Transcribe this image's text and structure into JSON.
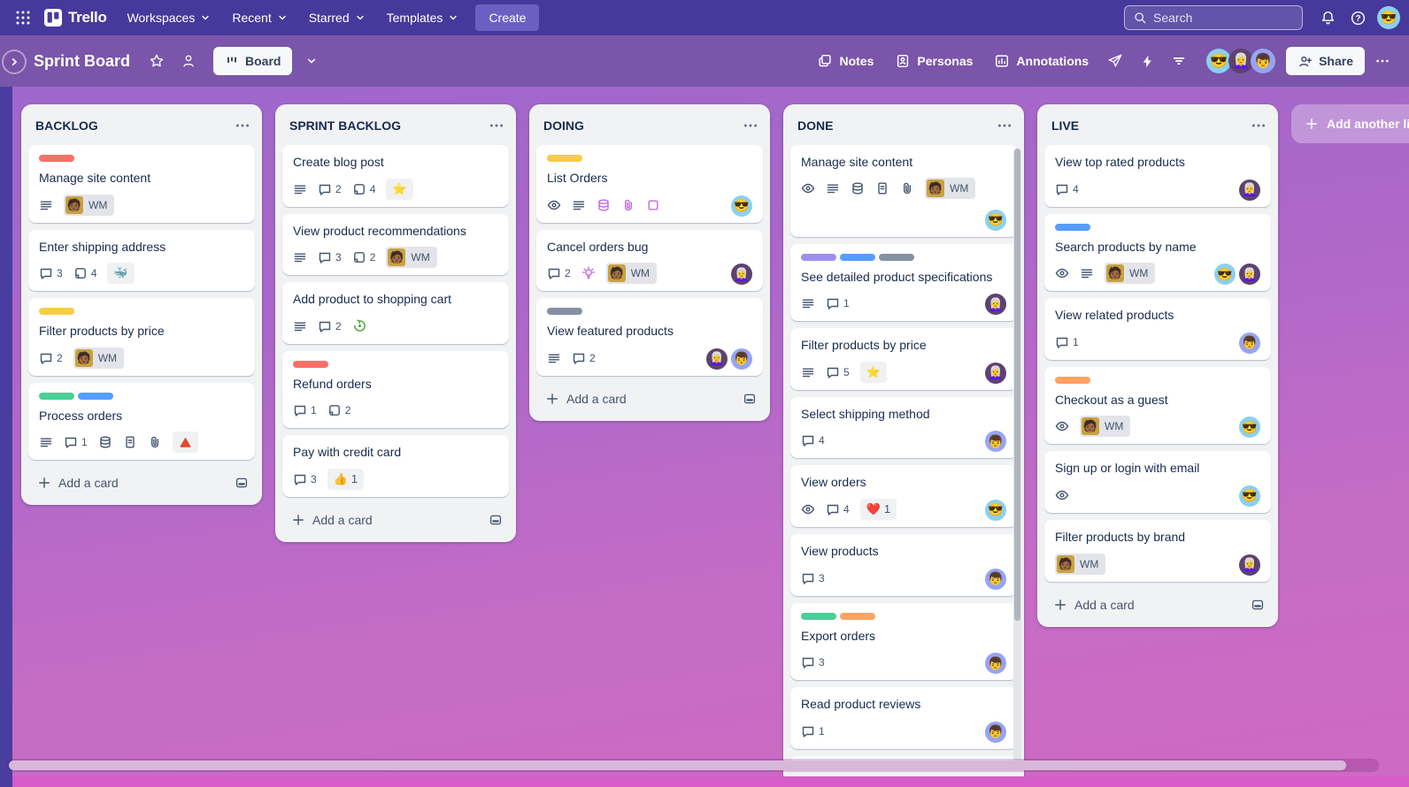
{
  "nav": {
    "brand": "Trello",
    "menus": [
      "Workspaces",
      "Recent",
      "Starred",
      "Templates"
    ],
    "create_label": "Create",
    "search_placeholder": "Search"
  },
  "header": {
    "title": "Sprint Board",
    "view_label": "Board",
    "tools": [
      "Notes",
      "Personas",
      "Annotations"
    ],
    "share_label": "Share"
  },
  "board": {
    "add_list_label": "Add another list",
    "add_card_label": "Add a card",
    "member_label": "WM",
    "member_photo_emoji": "🧑🏾",
    "label_colors": {
      "red": "#f87168",
      "yellow": "#f5cd47",
      "green": "#4bce97",
      "blue": "#579dff",
      "purple": "#9f8fef",
      "gray": "#8590a2",
      "orange": "#fea362"
    },
    "accent_colors": {
      "purple_icon": "#c26bd9",
      "sticker_green": "#5aac44",
      "sticker_red": "#e5472f"
    },
    "avatars": {
      "sun": {
        "name": "sunglasses-man",
        "emoji": "😎",
        "bg": "#8bd0f1"
      },
      "woman": {
        "name": "white-hair-woman",
        "emoji": "👩‍🦳",
        "bg": "#5d4370"
      },
      "boy": {
        "name": "boy",
        "emoji": "👦",
        "bg": "#97a4f4"
      }
    },
    "header_avatars": [
      "sun",
      "woman",
      "boy"
    ],
    "nav_avatar": "sun",
    "lists": [
      {
        "title": "BACKLOG",
        "cards": [
          {
            "title": "Manage site content",
            "labels": [
              "red"
            ],
            "badges": [
              {
                "t": "desc"
              },
              {
                "t": "member"
              }
            ]
          },
          {
            "title": "Enter shipping address",
            "badges": [
              {
                "t": "comments",
                "n": 3
              },
              {
                "t": "cards",
                "n": 4
              },
              {
                "t": "pill",
                "emoji": "🐳"
              }
            ]
          },
          {
            "title": "Filter products by price",
            "labels": [
              "yellow"
            ],
            "badges": [
              {
                "t": "comments",
                "n": 2
              },
              {
                "t": "member"
              }
            ]
          },
          {
            "title": "Process orders",
            "labels": [
              "green",
              "blue"
            ],
            "badges": [
              {
                "t": "desc"
              },
              {
                "t": "comments",
                "n": 1
              },
              {
                "t": "db"
              },
              {
                "t": "doc"
              },
              {
                "t": "clip"
              },
              {
                "t": "pill",
                "icon": "triangle"
              }
            ]
          }
        ]
      },
      {
        "title": "SPRINT BACKLOG",
        "cards": [
          {
            "title": "Create blog post",
            "badges": [
              {
                "t": "desc"
              },
              {
                "t": "comments",
                "n": 2
              },
              {
                "t": "cards",
                "n": 4
              },
              {
                "t": "pill",
                "emoji": "⭐"
              }
            ]
          },
          {
            "title": "View product recommendations",
            "badges": [
              {
                "t": "desc"
              },
              {
                "t": "comments",
                "n": 3
              },
              {
                "t": "cards",
                "n": 2
              },
              {
                "t": "member"
              }
            ]
          },
          {
            "title": "Add product to shopping cart",
            "badges": [
              {
                "t": "desc"
              },
              {
                "t": "comments",
                "n": 2
              },
              {
                "t": "icon",
                "icon": "spiral"
              }
            ]
          },
          {
            "title": "Refund orders",
            "labels": [
              "red"
            ],
            "badges": [
              {
                "t": "comments",
                "n": 1
              },
              {
                "t": "cards",
                "n": 2
              }
            ]
          },
          {
            "title": "Pay with credit card",
            "badges": [
              {
                "t": "comments",
                "n": 3
              },
              {
                "t": "pill",
                "emoji": "👍",
                "n": 1
              }
            ]
          }
        ]
      },
      {
        "title": "DOING",
        "cards": [
          {
            "title": "List Orders",
            "labels": [
              "yellow"
            ],
            "badges": [
              {
                "t": "eye"
              },
              {
                "t": "desc"
              },
              {
                "t": "db",
                "purple": true
              },
              {
                "t": "clip",
                "purple": true
              },
              {
                "t": "square",
                "purple": true
              }
            ],
            "avatars": [
              "sun"
            ]
          },
          {
            "title": "Cancel orders bug",
            "badges": [
              {
                "t": "comments",
                "n": 2
              },
              {
                "t": "bulb",
                "purple": true
              },
              {
                "t": "member"
              }
            ],
            "avatars": [
              "woman"
            ]
          },
          {
            "title": "View featured products",
            "labels": [
              "gray"
            ],
            "badges": [
              {
                "t": "desc"
              },
              {
                "t": "comments",
                "n": 2
              }
            ],
            "avatars": [
              "woman",
              "boy"
            ]
          }
        ]
      },
      {
        "title": "DONE",
        "scrollbar": true,
        "overflow_card": true,
        "cards": [
          {
            "title": "Manage site content",
            "badges": [
              {
                "t": "eye"
              },
              {
                "t": "desc"
              },
              {
                "t": "db"
              },
              {
                "t": "doc"
              },
              {
                "t": "clip"
              },
              {
                "t": "member"
              }
            ],
            "avatars": [
              "sun"
            ]
          },
          {
            "title": "See detailed product specifications",
            "labels": [
              "purple",
              "blue",
              "gray"
            ],
            "badges": [
              {
                "t": "desc"
              },
              {
                "t": "comments",
                "n": 1
              }
            ],
            "avatars": [
              "woman"
            ]
          },
          {
            "title": "Filter products by price",
            "badges": [
              {
                "t": "desc"
              },
              {
                "t": "comments",
                "n": 5
              },
              {
                "t": "pill",
                "emoji": "⭐"
              }
            ],
            "avatars": [
              "woman"
            ]
          },
          {
            "title": "Select shipping method",
            "badges": [
              {
                "t": "comments",
                "n": 4
              }
            ],
            "avatars": [
              "boy"
            ]
          },
          {
            "title": "View orders",
            "badges": [
              {
                "t": "eye"
              },
              {
                "t": "comments",
                "n": 4
              },
              {
                "t": "pill",
                "emoji": "❤️",
                "n": 1
              }
            ],
            "avatars": [
              "sun"
            ]
          },
          {
            "title": "View products",
            "badges": [
              {
                "t": "comments",
                "n": 3
              }
            ],
            "avatars": [
              "boy"
            ]
          },
          {
            "title": "Export orders",
            "labels": [
              "green",
              "orange"
            ],
            "badges": [
              {
                "t": "comments",
                "n": 3
              }
            ],
            "avatars": [
              "boy"
            ]
          },
          {
            "title": "Read product reviews",
            "badges": [
              {
                "t": "comments",
                "n": 1
              }
            ],
            "avatars": [
              "boy"
            ]
          }
        ]
      },
      {
        "title": "LIVE",
        "cards": [
          {
            "title": "View top rated products",
            "badges": [
              {
                "t": "comments",
                "n": 4
              }
            ],
            "avatars": [
              "woman"
            ]
          },
          {
            "title": "Search products by name",
            "labels": [
              "blue"
            ],
            "badges": [
              {
                "t": "eye"
              },
              {
                "t": "desc"
              },
              {
                "t": "member"
              }
            ],
            "avatars": [
              "sun",
              "woman"
            ]
          },
          {
            "title": "View related products",
            "badges": [
              {
                "t": "comments",
                "n": 1
              }
            ],
            "avatars": [
              "boy"
            ]
          },
          {
            "title": "Checkout as a guest",
            "labels": [
              "orange"
            ],
            "badges": [
              {
                "t": "eye"
              },
              {
                "t": "member"
              }
            ],
            "avatars": [
              "sun"
            ]
          },
          {
            "title": "Sign up or login with email",
            "badges": [
              {
                "t": "eye"
              }
            ],
            "avatars": [
              "sun"
            ]
          },
          {
            "title": "Filter products by brand",
            "badges": [
              {
                "t": "member"
              }
            ],
            "avatars": [
              "woman"
            ]
          }
        ]
      }
    ]
  }
}
